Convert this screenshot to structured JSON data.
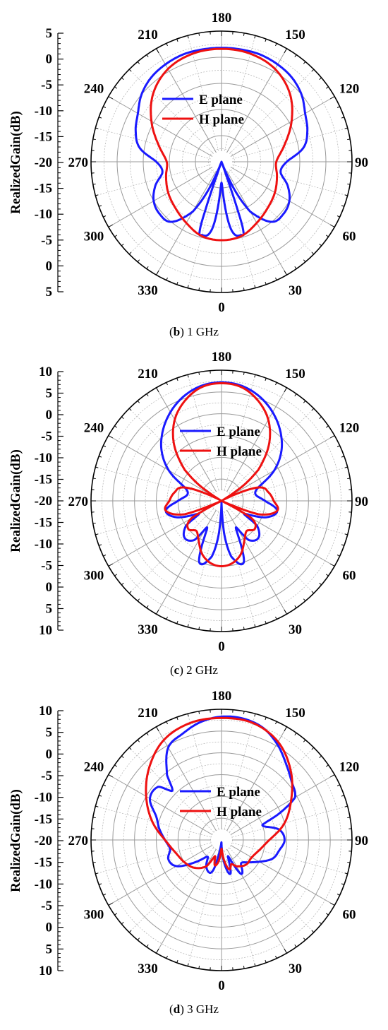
{
  "chart_data": [
    {
      "type": "polar",
      "caption_letter": "b",
      "caption_freq": "1 GHz",
      "ylabel": "RealizedGain(dB)",
      "r_range": [
        -20,
        5
      ],
      "r_grid_step": 5,
      "r_ticks": [
        "5",
        "0",
        "-5",
        "-10",
        "-15",
        "-20",
        "-15",
        "-10",
        "-5",
        "0",
        "5"
      ],
      "angle_labels": [
        "180",
        "150",
        "120",
        "90",
        "60",
        "30",
        "0",
        "330",
        "300",
        "270",
        "240",
        "210"
      ],
      "angle_direction": "counterclockwise from bottom",
      "zero_angle_location": "bottom",
      "grid": true,
      "legend": "top-center",
      "series": [
        {
          "name": "E plane",
          "color": "#1a1aff",
          "theta_deg": [
            0,
            8,
            15,
            18,
            20,
            25,
            30,
            40,
            50,
            60,
            70,
            80,
            90,
            100,
            110,
            120,
            130,
            140,
            150,
            160,
            170,
            180
          ],
          "gain_db": [
            -16,
            -7,
            -5.5,
            -7,
            -20,
            -14,
            -9,
            -5,
            -4.5,
            -5,
            -6.5,
            -8.5,
            -7.5,
            -4,
            -2.5,
            -1.5,
            0,
            1,
            1.5,
            1.8,
            1.8,
            1.8
          ]
        },
        {
          "name": "H plane",
          "color": "#ee1111",
          "theta_deg": [
            0,
            15,
            30,
            45,
            60,
            75,
            90,
            105,
            120,
            135,
            150,
            165,
            180
          ],
          "gain_db": [
            -5,
            -5.3,
            -6.5,
            -7.5,
            -8.2,
            -9,
            -9.5,
            -7.5,
            -4.5,
            -1.5,
            0.5,
            1.4,
            1.6
          ]
        }
      ]
    },
    {
      "type": "polar",
      "caption_letter": "c",
      "caption_freq": "2 GHz",
      "ylabel": "RealizedGain(dB)",
      "r_range": [
        -20,
        10
      ],
      "r_grid_step": 5,
      "r_ticks": [
        "10",
        "5",
        "0",
        "-5",
        "-10",
        "-15",
        "-20",
        "-15",
        "-10",
        "-5",
        "0",
        "5",
        "10"
      ],
      "angle_labels": [
        "180",
        "150",
        "120",
        "90",
        "60",
        "30",
        "0",
        "330",
        "300",
        "270",
        "240",
        "210"
      ],
      "angle_direction": "counterclockwise from bottom",
      "zero_angle_location": "bottom",
      "grid": true,
      "legend": "top-center",
      "series": [
        {
          "name": "E plane",
          "color": "#1a1aff",
          "theta_deg": [
            0,
            5,
            10,
            20,
            28,
            35,
            45,
            55,
            60,
            70,
            80,
            90,
            100,
            110,
            120,
            130,
            140,
            150,
            160,
            170,
            180
          ],
          "gain_db": [
            -20,
            -12,
            -7,
            -5,
            -13,
            -9,
            -8,
            -10,
            -14,
            -9,
            -7,
            -10,
            -12,
            -11,
            -6,
            -2,
            1,
            3.5,
            5.5,
            6.8,
            7.2
          ]
        },
        {
          "name": "H plane",
          "color": "#ee1111",
          "theta_deg": [
            0,
            10,
            20,
            30,
            40,
            50,
            60,
            65,
            70,
            80,
            90,
            100,
            110,
            120,
            125,
            130,
            140,
            150,
            160,
            170,
            180
          ],
          "gain_db": [
            -5,
            -5.5,
            -7,
            -9.5,
            -11,
            -10,
            -12,
            -20,
            -11,
            -7,
            -8,
            -9,
            -11,
            -20,
            -14,
            -9,
            -3,
            1.5,
            4.5,
            6.5,
            7
          ]
        }
      ]
    },
    {
      "type": "polar",
      "caption_letter": "d",
      "caption_freq": "3 GHz",
      "ylabel": "RealizedGain(dB)",
      "r_range": [
        -20,
        10
      ],
      "r_grid_step": 5,
      "r_ticks": [
        "10",
        "5",
        "0",
        "-5",
        "-10",
        "-15",
        "-20",
        "-15",
        "-10",
        "-5",
        "0",
        "5",
        "10"
      ],
      "angle_labels": [
        "180",
        "150",
        "120",
        "90",
        "60",
        "30",
        "0",
        "330",
        "300",
        "270",
        "240",
        "210"
      ],
      "angle_direction": "counterclockwise from bottom",
      "zero_angle_location": "bottom",
      "grid": true,
      "legend": "top-center",
      "series": [
        {
          "name": "E plane",
          "color": "#1a1aff",
          "theta_deg": [
            0,
            8,
            15,
            22,
            30,
            40,
            50,
            60,
            70,
            80,
            90,
            100,
            110,
            115,
            120,
            130,
            140,
            150,
            160,
            170,
            180,
            190,
            200,
            210,
            220,
            225,
            230,
            240,
            250,
            260,
            270,
            280,
            290,
            300,
            310,
            320,
            330,
            340,
            345,
            350,
            355,
            360
          ],
          "gain_db": [
            -19,
            -14,
            -12,
            -16,
            -11,
            -13,
            -12,
            -10,
            -7.5,
            -6.5,
            -5.5,
            -6.5,
            -10,
            -5,
            -0.5,
            1,
            3,
            5.5,
            7.5,
            8.3,
            8.3,
            7.5,
            6,
            4.5,
            -0.5,
            -4,
            -1,
            -1,
            -4,
            -5.5,
            -7,
            -8,
            -7,
            -8,
            -12,
            -15,
            -13,
            -12,
            -13,
            -17,
            -19,
            -19
          ]
        },
        {
          "name": "H plane",
          "color": "#ee1111",
          "theta_deg": [
            0,
            8,
            15,
            22,
            30,
            45,
            60,
            75,
            90,
            105,
            120,
            135,
            150,
            165,
            180,
            195,
            210,
            225,
            240,
            255,
            270,
            285,
            300,
            315,
            330,
            338,
            345,
            352,
            360
          ],
          "gain_db": [
            -18,
            -15,
            -13,
            -14,
            -13,
            -12,
            -12,
            -11,
            -9,
            -5,
            -1.5,
            2.5,
            6,
            7.8,
            8,
            7.8,
            6.5,
            3.5,
            0,
            -3.5,
            -7,
            -9,
            -10,
            -11,
            -13,
            -16,
            -14,
            -15,
            -18
          ]
        }
      ]
    }
  ]
}
